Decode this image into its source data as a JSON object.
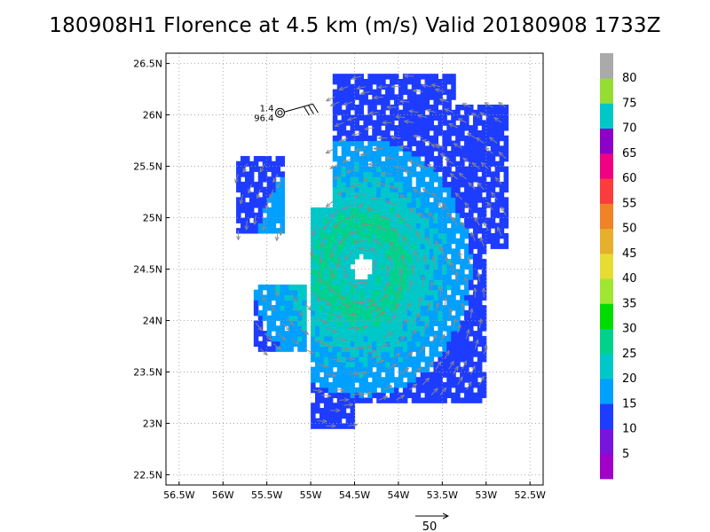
{
  "title": "180908H1 Florence at 4.5 km (m/s) Valid 20180908  1733Z",
  "chart_data": {
    "type": "heatmap",
    "title": "180908H1 Florence at 4.5 km (m/s) Valid 20180908  1733Z",
    "units": "m/s",
    "x_axis": {
      "range": [
        -56.65,
        -52.35
      ],
      "ticks": [
        -56.5,
        -56,
        -55.5,
        -55,
        -54.5,
        -54,
        -53.5,
        -53,
        -52.5
      ],
      "tick_labels": [
        "56.5W",
        "56W",
        "55.5W",
        "55W",
        "54.5W",
        "54W",
        "53.5W",
        "53W",
        "52.5W"
      ]
    },
    "y_axis": {
      "range": [
        22.4,
        26.6
      ],
      "ticks": [
        22.5,
        23,
        23.5,
        24,
        24.5,
        25,
        25.5,
        26,
        26.5
      ],
      "tick_labels": [
        "22.5N",
        "23N",
        "23.5N",
        "24N",
        "24.5N",
        "25N",
        "25.5N",
        "26N",
        "26.5N"
      ]
    },
    "grid": true,
    "colorbar": {
      "position": "right",
      "levels": [
        "5",
        "10",
        "15",
        "20",
        "25",
        "30",
        "35",
        "40",
        "45",
        "50",
        "55",
        "60",
        "65",
        "70",
        "75",
        "80"
      ],
      "colors": [
        "#a000c8",
        "#7814dc",
        "#1e3cff",
        "#00a0ff",
        "#00c8c8",
        "#00d28c",
        "#00dc00",
        "#a0e632",
        "#e6dc32",
        "#e6af2d",
        "#f08228",
        "#fa3c3c",
        "#f00082",
        "#8c00c8",
        "#00c8c8",
        "#96dc32",
        "#aaaaaa"
      ]
    },
    "storm_center": {
      "lon": -54.42,
      "lat": 24.52
    },
    "eye_radius_deg": 0.11,
    "rmw_deg": 0.45,
    "peak_wind": 27,
    "observation": {
      "lon": -55.35,
      "lat": 26.02,
      "labels": [
        "1.4",
        "96.4"
      ]
    },
    "reference_vector": {
      "label": "50",
      "speed": 50
    },
    "regions": [
      {
        "name": "main-core",
        "lon": [
          -55.0,
          -53.0
        ],
        "lat": [
          23.2,
          25.1
        ]
      },
      {
        "name": "north-band",
        "lon": [
          -54.75,
          -53.35
        ],
        "lat": [
          25.1,
          26.4
        ]
      },
      {
        "name": "ne-band",
        "lon": [
          -53.6,
          -52.75
        ],
        "lat": [
          24.7,
          26.1
        ]
      },
      {
        "name": "west-band",
        "lon": [
          -55.65,
          -55.05
        ],
        "lat": [
          23.7,
          24.35
        ]
      },
      {
        "name": "nw-arc",
        "lon": [
          -55.85,
          -55.3
        ],
        "lat": [
          24.85,
          25.6
        ]
      },
      {
        "name": "south-tail",
        "lon": [
          -55.0,
          -54.5
        ],
        "lat": [
          22.95,
          23.2
        ]
      }
    ]
  }
}
